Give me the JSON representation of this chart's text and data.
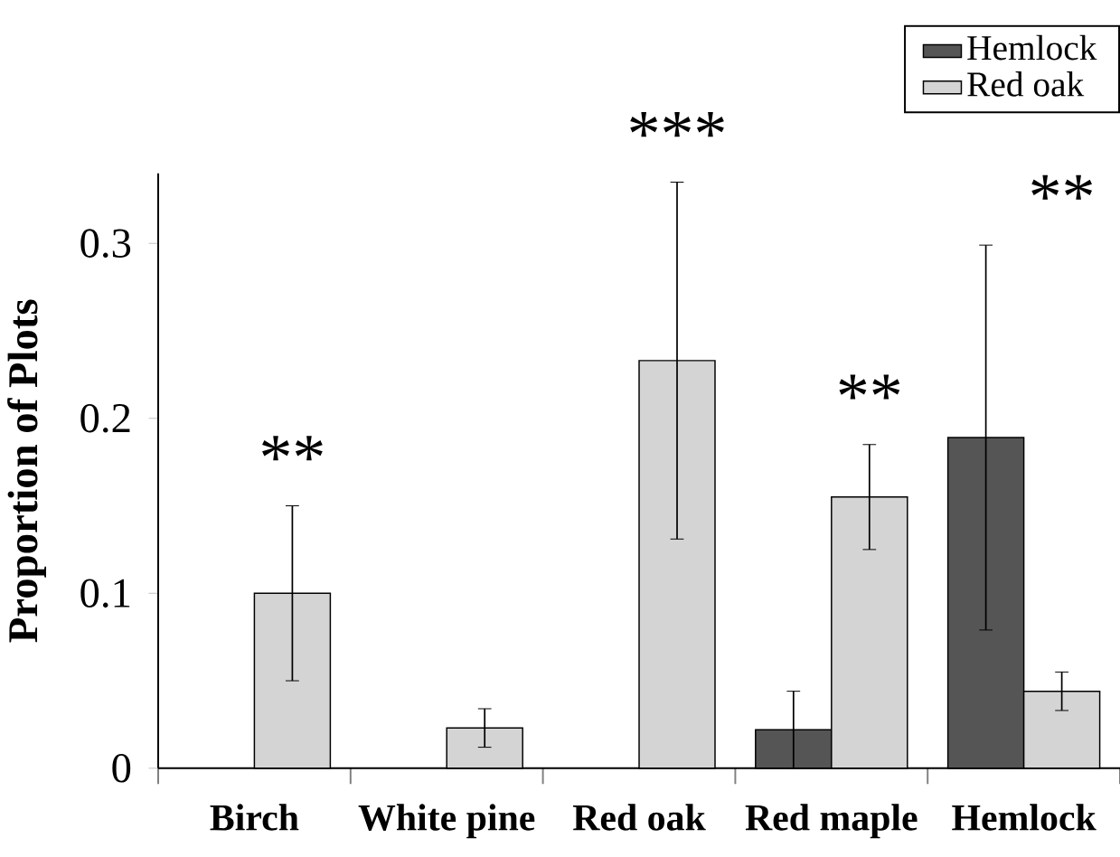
{
  "chart_data": {
    "type": "bar",
    "ylabel": "Proportion of Plots",
    "categories": [
      "Birch",
      "White pine",
      "Red oak",
      "Red maple",
      "Hemlock"
    ],
    "series": [
      {
        "name": "Hemlock",
        "color": "#555555",
        "values": [
          null,
          null,
          null,
          0.022,
          0.189
        ],
        "errors": [
          null,
          null,
          null,
          0.022,
          0.11
        ]
      },
      {
        "name": "Red oak",
        "color": "#d4d4d4",
        "values": [
          0.1,
          0.023,
          0.233,
          0.155,
          0.044
        ],
        "errors": [
          0.05,
          0.011,
          0.102,
          0.03,
          0.011
        ]
      }
    ],
    "ylim": [
      0,
      0.34
    ],
    "yticks": [
      0,
      0.1,
      0.2,
      0.3
    ],
    "legend": "top right",
    "annotations": [
      "**",
      "***",
      "**",
      "**"
    ]
  }
}
